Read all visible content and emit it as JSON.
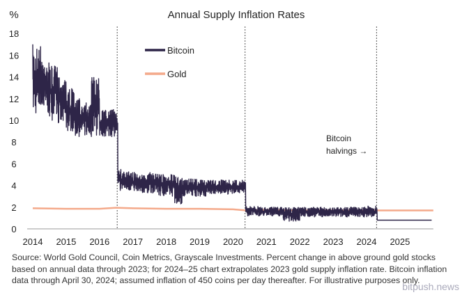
{
  "chart_data": {
    "type": "line",
    "title": "Annual Supply Inflation Rates",
    "ylabel": "%",
    "xlabel": "",
    "ylim": [
      0,
      18
    ],
    "xlim": [
      2014,
      2026
    ],
    "yticks": [
      "0",
      "2",
      "4",
      "6",
      "8",
      "10",
      "12",
      "14",
      "16",
      "18"
    ],
    "xticks": [
      "2014",
      "2015",
      "2016",
      "2017",
      "2018",
      "2019",
      "2020",
      "2021",
      "2022",
      "2023",
      "2024",
      "2025"
    ],
    "grid": false,
    "legend": "top-left",
    "halvings": [
      2016.53,
      2020.36,
      2024.3
    ],
    "annotation": "Bitcoin halvings →",
    "series": [
      {
        "name": "Bitcoin",
        "color": "#2e2548",
        "note_band": "daily values fluctuate between low and high",
        "x": [
          2014.0,
          2014.25,
          2014.5,
          2014.75,
          2015.0,
          2015.25,
          2015.5,
          2015.75,
          2016.0,
          2016.25,
          2016.5,
          2016.55,
          2016.75,
          2017.0,
          2017.25,
          2017.5,
          2017.75,
          2018.0,
          2018.25,
          2018.5,
          2018.75,
          2019.0,
          2019.25,
          2019.5,
          2019.75,
          2020.0,
          2020.35,
          2020.38,
          2020.75,
          2021.0,
          2021.5,
          2022.0,
          2022.5,
          2023.0,
          2023.5,
          2024.0,
          2024.3,
          2024.32,
          2025.95
        ],
        "low": [
          10.5,
          10.5,
          10,
          9.5,
          9,
          8.5,
          8.5,
          8.5,
          8.5,
          8.5,
          8,
          3.5,
          3.5,
          3.5,
          3.3,
          3.3,
          3,
          3,
          2.3,
          3,
          3,
          3,
          3.2,
          3.2,
          3.2,
          3.3,
          3.3,
          1.2,
          1.2,
          1.2,
          0.7,
          1.1,
          1.1,
          1.1,
          1.1,
          1.1,
          1.1,
          0.8,
          0.8
        ],
        "high": [
          17,
          15.5,
          15,
          14,
          13,
          12,
          12,
          14,
          11,
          11,
          11,
          5.5,
          5.3,
          5.3,
          5.2,
          5.2,
          5,
          5,
          4.8,
          4.6,
          4.6,
          4.5,
          4.5,
          4.5,
          4.5,
          4.5,
          4.5,
          2.1,
          2.0,
          2.0,
          2.0,
          2.0,
          2.0,
          2.0,
          2.0,
          2.1,
          2.0,
          0.8,
          0.8
        ]
      },
      {
        "name": "Gold",
        "color": "#f4a98a",
        "x": [
          2014,
          2015,
          2016,
          2016.5,
          2017,
          2018,
          2019,
          2020,
          2020.4,
          2021,
          2022,
          2023,
          2024,
          2025,
          2026
        ],
        "y": [
          1.9,
          1.85,
          1.85,
          1.95,
          1.9,
          1.85,
          1.85,
          1.8,
          1.7,
          1.75,
          1.7,
          1.7,
          1.7,
          1.7,
          1.7
        ]
      }
    ]
  },
  "source": "Source: World Gold Council, Coin Metrics, Grayscale Investments. Percent change in above ground gold stocks based on annual data through 2023; for 2024–25 chart extrapolates 2023 gold supply inflation rate. Bitcoin inflation data through April 30, 2024; assumed inflation of 450 coins per day thereafter. For illustrative purposes only.",
  "watermark": "bitpush.news"
}
